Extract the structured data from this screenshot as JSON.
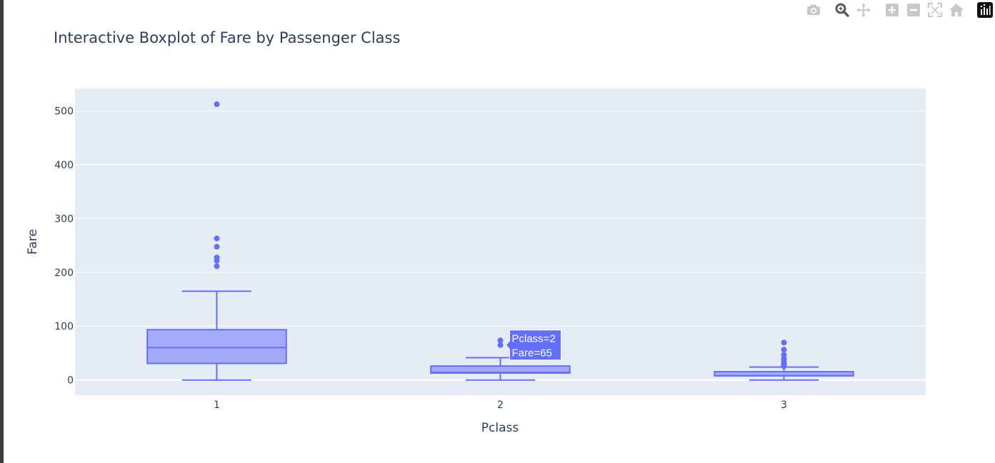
{
  "toolbar": {
    "buttons": [
      {
        "name": "camera-icon",
        "tooltip": "Download plot as a png"
      },
      {
        "name": "zoom-icon",
        "tooltip": "Zoom"
      },
      {
        "name": "pan-icon",
        "tooltip": "Pan"
      },
      {
        "name": "zoom-in-icon",
        "tooltip": "Zoom in"
      },
      {
        "name": "zoom-out-icon",
        "tooltip": "Zoom out"
      },
      {
        "name": "autoscale-icon",
        "tooltip": "Autoscale"
      },
      {
        "name": "reset-axes-icon",
        "tooltip": "Reset axes"
      },
      {
        "name": "plotly-logo-icon",
        "tooltip": "Produced with Plotly"
      }
    ],
    "active": "zoom-icon"
  },
  "colors": {
    "plot_bg": "#e5ecf6",
    "box_line": "#636efa",
    "box_fill": "#a4aaf7",
    "text": "#2a3f5f",
    "grid": "#ffffff"
  },
  "chart_data": {
    "type": "box",
    "title": "Interactive Boxplot of Fare by Passenger Class",
    "xlabel": "Pclass",
    "ylabel": "Fare",
    "categories": [
      "1",
      "2",
      "3"
    ],
    "yticks": [
      0,
      100,
      200,
      300,
      400,
      500
    ],
    "ylim": [
      -28.2,
      541.5
    ],
    "grid": true,
    "boxes": [
      {
        "category": "1",
        "min": 0,
        "q1": 30.9,
        "median": 60.3,
        "q3": 93.5,
        "max": 164.9,
        "outliers": [
          512.3,
          263,
          247.5,
          227.5,
          221.8,
          211.5
        ]
      },
      {
        "category": "2",
        "min": 0,
        "q1": 13,
        "median": 14.3,
        "q3": 26,
        "max": 41.6,
        "outliers": [
          73.5,
          65
        ]
      },
      {
        "category": "3",
        "min": 0,
        "q1": 7.8,
        "median": 8.1,
        "q3": 15.5,
        "max": 24.2,
        "outliers": [
          69.6,
          56.5,
          46.9,
          39.7,
          34.4,
          31.3,
          29.1,
          27.9,
          25.5
        ]
      }
    ],
    "hover": {
      "category": "2",
      "value": 65,
      "lines": [
        "Pclass=2",
        "Fare=65"
      ]
    }
  }
}
